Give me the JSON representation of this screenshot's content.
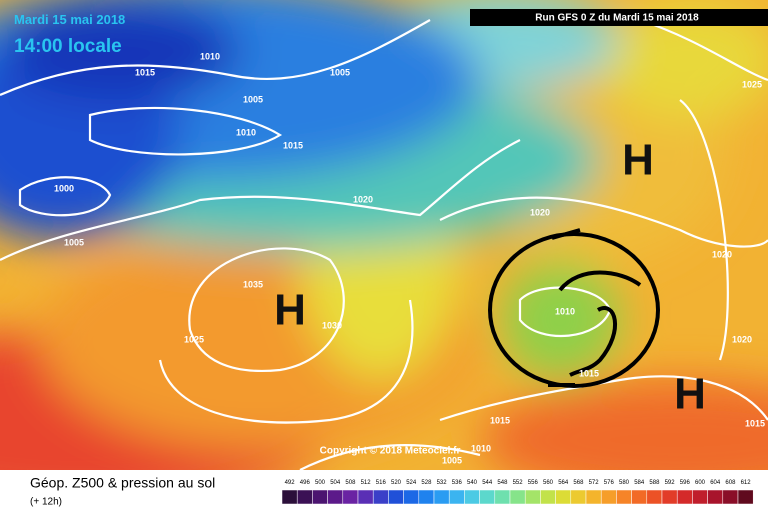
{
  "header": {
    "date": "Mardi 15 mai 2018",
    "time": "14:00 locale",
    "run": "Run GFS 0 Z du Mardi 15 mai 2018"
  },
  "map": {
    "pressure_labels": [
      "1015",
      "1010",
      "1005",
      "1005",
      "1010",
      "1015",
      "1000",
      "1005",
      "1020",
      "1035",
      "1030",
      "1025",
      "1020",
      "1010",
      "1015",
      "1015",
      "1010",
      "1005",
      "1020",
      "1020",
      "1025",
      "1015"
    ],
    "highs": [
      "H",
      "H",
      "H"
    ],
    "copyright": "Copyright © 2018 Meteociel.fr"
  },
  "legend": {
    "title": "Géop. Z500 & pression au sol",
    "lead": "(+ 12h)",
    "scale": [
      492,
      496,
      500,
      504,
      508,
      512,
      516,
      520,
      524,
      528,
      532,
      536,
      540,
      544,
      548,
      552,
      556,
      560,
      564,
      568,
      572,
      576,
      580,
      584,
      588,
      592,
      596,
      600,
      604,
      608,
      612
    ]
  }
}
